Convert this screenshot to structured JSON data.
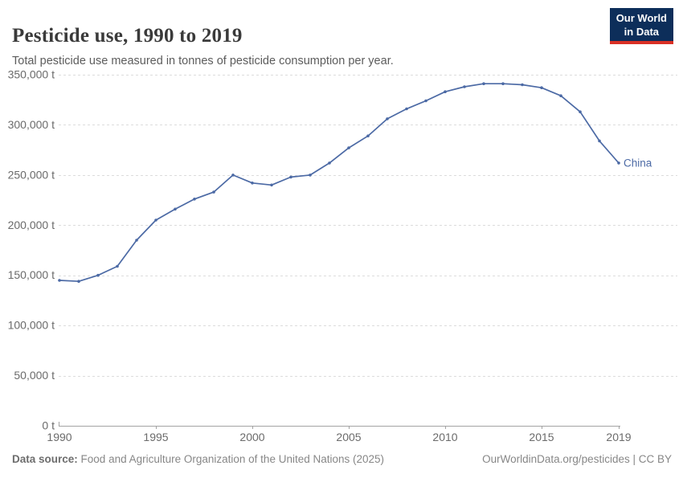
{
  "header": {
    "title": "Pesticide use, 1990 to 2019",
    "subtitle": "Total pesticide use measured in tonnes of pesticide consumption per year."
  },
  "logo": {
    "line1": "Our World",
    "line2": "in Data",
    "bg_color": "#0d2e5a",
    "accent_color": "#d93025",
    "text_color": "#ffffff"
  },
  "chart_data": {
    "type": "line",
    "title": "Pesticide use, 1990 to 2019",
    "subtitle": "Total pesticide use measured in tonnes of pesticide consumption per year.",
    "xlabel": "",
    "ylabel": "",
    "unit": "t",
    "xlim": [
      1990,
      2019
    ],
    "ylim": [
      0,
      350000
    ],
    "grid": "horizontal-dashed",
    "legend": "entity-label-at-line-end",
    "x_ticks": [
      {
        "value": 1990,
        "label": "1990"
      },
      {
        "value": 1995,
        "label": "1995"
      },
      {
        "value": 2000,
        "label": "2000"
      },
      {
        "value": 2005,
        "label": "2005"
      },
      {
        "value": 2010,
        "label": "2010"
      },
      {
        "value": 2015,
        "label": "2015"
      },
      {
        "value": 2019,
        "label": "2019"
      }
    ],
    "y_ticks": [
      {
        "value": 0,
        "label": "0 t"
      },
      {
        "value": 50000,
        "label": "50,000 t"
      },
      {
        "value": 100000,
        "label": "100,000 t"
      },
      {
        "value": 150000,
        "label": "150,000 t"
      },
      {
        "value": 200000,
        "label": "200,000 t"
      },
      {
        "value": 250000,
        "label": "250,000 t"
      },
      {
        "value": 300000,
        "label": "300,000 t"
      },
      {
        "value": 350000,
        "label": "350,000 t"
      }
    ],
    "series": [
      {
        "name": "China",
        "color": "#4c6aa5",
        "x": [
          1990,
          1991,
          1992,
          1993,
          1994,
          1995,
          1996,
          1997,
          1998,
          1999,
          2000,
          2001,
          2002,
          2003,
          2004,
          2005,
          2006,
          2007,
          2008,
          2009,
          2010,
          2011,
          2012,
          2013,
          2014,
          2015,
          2016,
          2017,
          2018,
          2019
        ],
        "values": [
          145000,
          144000,
          150000,
          159000,
          185000,
          205000,
          216000,
          226000,
          233000,
          250000,
          242000,
          240000,
          248000,
          250000,
          262000,
          277000,
          289000,
          306000,
          316000,
          324000,
          333000,
          338000,
          341000,
          341000,
          340000,
          337000,
          329000,
          313000,
          284000,
          262000
        ]
      }
    ]
  },
  "footer": {
    "source_label": "Data source:",
    "source_text": "Food and Agriculture Organization of the United Nations (2025)",
    "link": "OurWorldinData.org/pesticides",
    "separator": " | ",
    "license": "CC BY"
  }
}
